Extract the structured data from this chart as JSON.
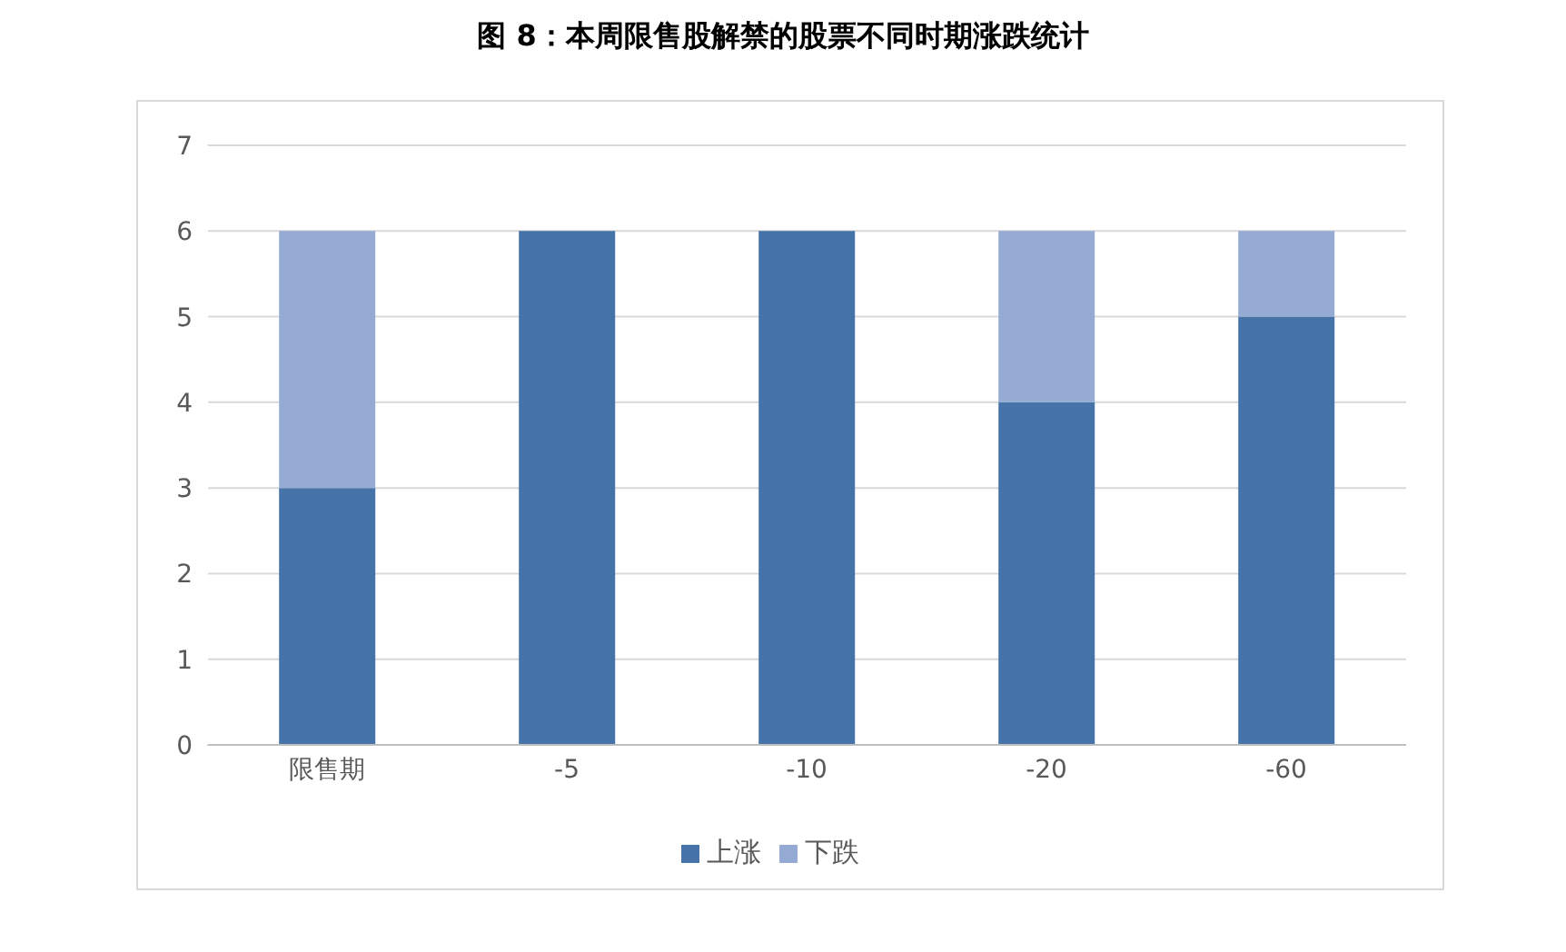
{
  "chart_data": {
    "type": "bar",
    "title": "图 8：本周限售股解禁的股票不同时期涨跌统计",
    "categories": [
      "限售期",
      "-5",
      "-10",
      "-20",
      "-60"
    ],
    "stacked": true,
    "series": [
      {
        "name": "上涨",
        "color": "#4674a8",
        "values": [
          3,
          6,
          6,
          4,
          5
        ]
      },
      {
        "name": "下跌",
        "color": "#95abd3",
        "values": [
          3,
          0,
          0,
          2,
          1
        ]
      }
    ],
    "ylim": [
      0,
      7
    ],
    "yticks": [
      0,
      1,
      2,
      3,
      4,
      5,
      6,
      7
    ],
    "grid": "y",
    "legend": "bottom"
  }
}
